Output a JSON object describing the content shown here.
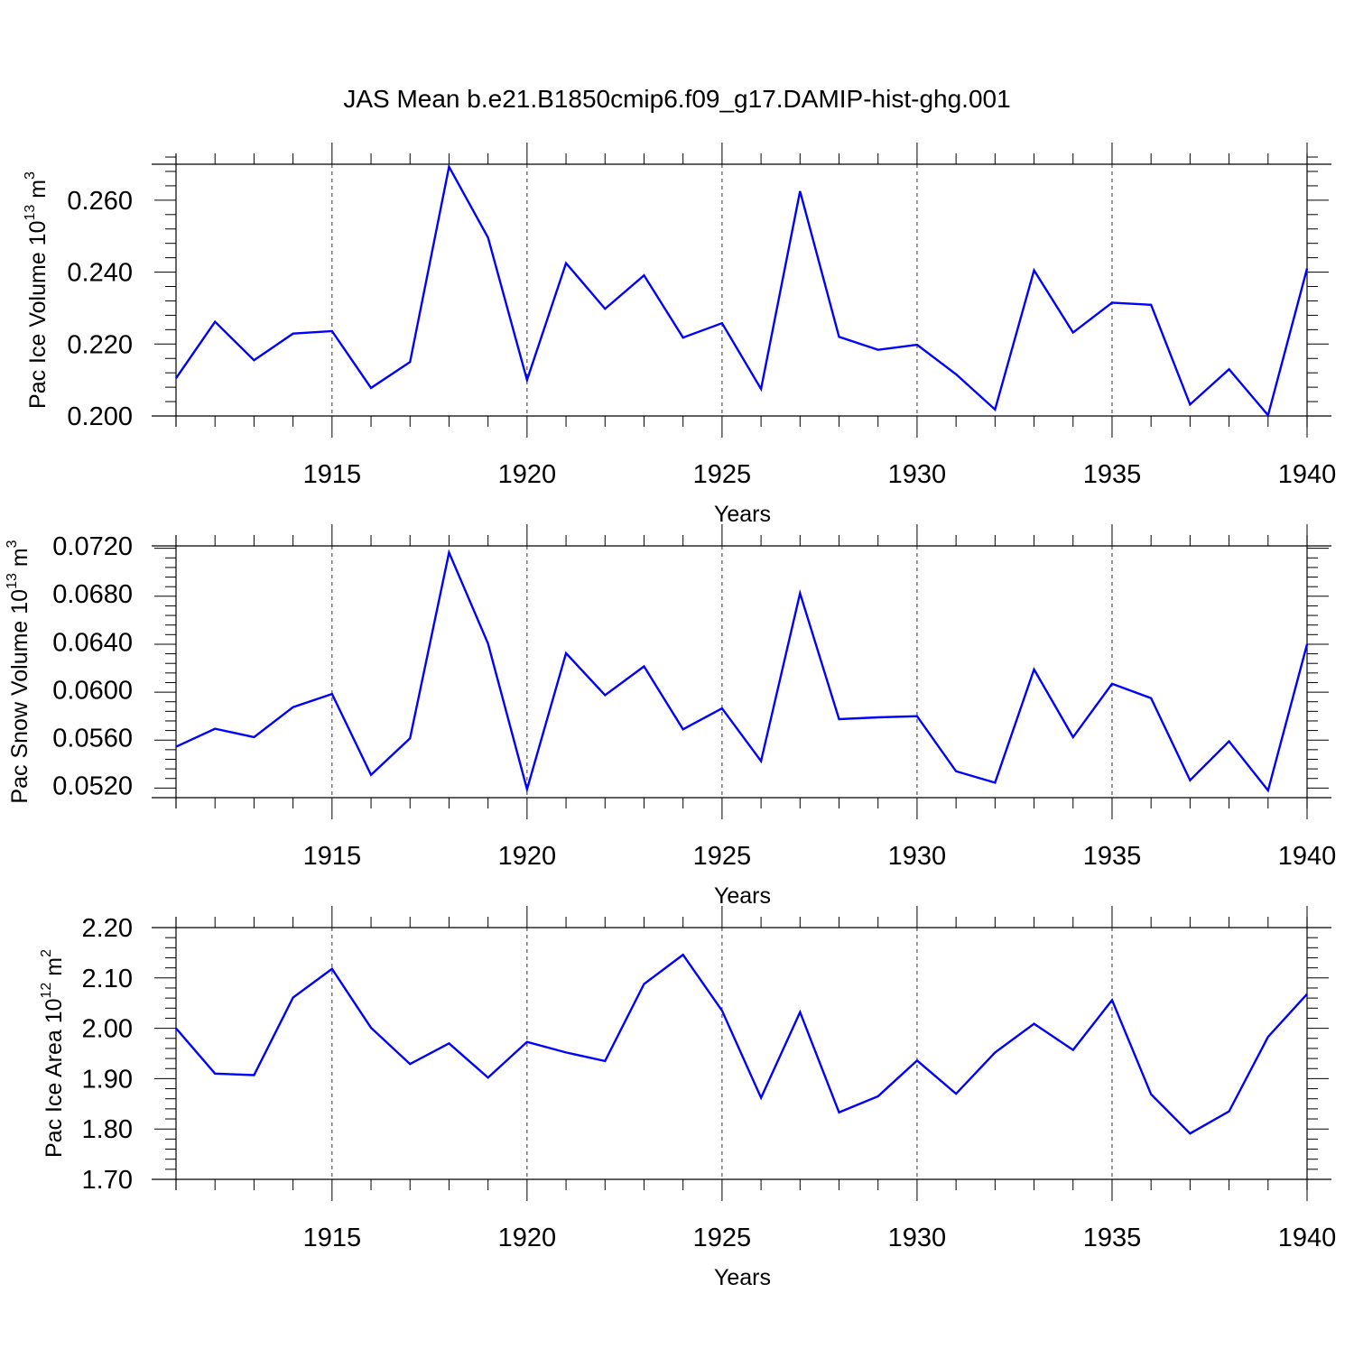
{
  "page": {
    "title": "JAS Mean b.e21.B1850cmip6.f09_g17.DAMIP-hist-ghg.001"
  },
  "colors": {
    "line": "#0000ff",
    "axes": "#000000",
    "background": "#ffffff"
  },
  "chart_data": [
    {
      "type": "line",
      "title": "JAS Mean b.e21.B1850cmip6.f09_g17.DAMIP-hist-ghg.001",
      "xlabel": "Years",
      "ylabel": "Pac Ice Volume 10",
      "ylabel_sup": "13",
      "ylabel_unit": " m",
      "ylabel_unit_sup": "3",
      "x": [
        1911,
        1912,
        1913,
        1914,
        1915,
        1916,
        1917,
        1918,
        1919,
        1920,
        1921,
        1922,
        1923,
        1924,
        1925,
        1926,
        1927,
        1928,
        1929,
        1930,
        1931,
        1932,
        1933,
        1934,
        1935,
        1936,
        1937,
        1938,
        1939,
        1940
      ],
      "values": [
        0.2105,
        0.2262,
        0.2155,
        0.2229,
        0.2236,
        0.2078,
        0.215,
        0.2693,
        0.2496,
        0.21,
        0.2425,
        0.2298,
        0.2391,
        0.2218,
        0.2258,
        0.2075,
        0.2625,
        0.222,
        0.2184,
        0.2198,
        0.2116,
        0.2018,
        0.2405,
        0.2232,
        0.2315,
        0.2309,
        0.2032,
        0.213,
        0.2002,
        0.241
      ],
      "xlim": [
        1911,
        1940
      ],
      "ylim": [
        0.2,
        0.27
      ],
      "xticks": [
        1915,
        1920,
        1925,
        1930,
        1935,
        1940
      ],
      "xtick_labels": [
        "1915",
        "1920",
        "1925",
        "1930",
        "1935",
        "1940"
      ],
      "yticks": [
        0.2,
        0.22,
        0.24,
        0.26
      ],
      "ytick_labels": [
        "0.200",
        "0.220",
        "0.240",
        "0.260"
      ],
      "grid": "vertical dashed at major x ticks"
    },
    {
      "type": "line",
      "xlabel": "Years",
      "ylabel": "Pac Snow Volume 10",
      "ylabel_sup": "13",
      "ylabel_unit": " m",
      "ylabel_unit_sup": "3",
      "x": [
        1911,
        1912,
        1913,
        1914,
        1915,
        1916,
        1917,
        1918,
        1919,
        1920,
        1921,
        1922,
        1923,
        1924,
        1925,
        1926,
        1927,
        1928,
        1929,
        1930,
        1931,
        1932,
        1933,
        1934,
        1935,
        1936,
        1937,
        1938,
        1939,
        1940
      ],
      "values": [
        0.05525,
        0.05675,
        0.05605,
        0.05855,
        0.05965,
        0.0529,
        0.05595,
        0.07145,
        0.06385,
        0.0517,
        0.06305,
        0.05955,
        0.06195,
        0.0567,
        0.05845,
        0.05405,
        0.06805,
        0.05755,
        0.0577,
        0.0578,
        0.0532,
        0.05225,
        0.0617,
        0.05605,
        0.0605,
        0.0593,
        0.05245,
        0.0557,
        0.0516,
        0.0638
      ],
      "xlim": [
        1911,
        1940
      ],
      "ylim": [
        0.051,
        0.072
      ],
      "xticks": [
        1915,
        1920,
        1925,
        1930,
        1935,
        1940
      ],
      "xtick_labels": [
        "1915",
        "1920",
        "1925",
        "1930",
        "1935",
        "1940"
      ],
      "yticks": [
        0.052,
        0.056,
        0.06,
        0.064,
        0.068,
        0.072
      ],
      "ytick_labels": [
        "0.0520",
        "0.0560",
        "0.0600",
        "0.0640",
        "0.0680",
        "0.0720"
      ],
      "grid": "vertical dashed at major x ticks"
    },
    {
      "type": "line",
      "xlabel": "Years",
      "ylabel": "Pac Ice Area 10",
      "ylabel_sup": "12",
      "ylabel_unit": " m",
      "ylabel_unit_sup": "2",
      "x": [
        1911,
        1912,
        1913,
        1914,
        1915,
        1916,
        1917,
        1918,
        1919,
        1920,
        1921,
        1922,
        1923,
        1924,
        1925,
        1926,
        1927,
        1928,
        1929,
        1930,
        1931,
        1932,
        1933,
        1934,
        1935,
        1936,
        1937,
        1938,
        1939,
        1940
      ],
      "values": [
        2.0,
        1.91,
        1.907,
        2.061,
        2.118,
        2.001,
        1.929,
        1.97,
        1.902,
        1.973,
        1.952,
        1.935,
        2.088,
        2.146,
        2.035,
        1.862,
        2.032,
        1.833,
        1.865,
        1.936,
        1.87,
        1.952,
        2.009,
        1.957,
        2.056,
        1.869,
        1.791,
        1.835,
        1.983,
        2.068
      ],
      "xlim": [
        1911,
        1940
      ],
      "ylim": [
        1.7,
        2.2
      ],
      "xticks": [
        1915,
        1920,
        1925,
        1930,
        1935,
        1940
      ],
      "xtick_labels": [
        "1915",
        "1920",
        "1925",
        "1930",
        "1935",
        "1940"
      ],
      "yticks": [
        1.7,
        1.8,
        1.9,
        2.0,
        2.1,
        2.2
      ],
      "ytick_labels": [
        "1.70",
        "1.80",
        "1.90",
        "2.00",
        "2.10",
        "2.20"
      ],
      "grid": "vertical dashed at major x ticks"
    }
  ]
}
